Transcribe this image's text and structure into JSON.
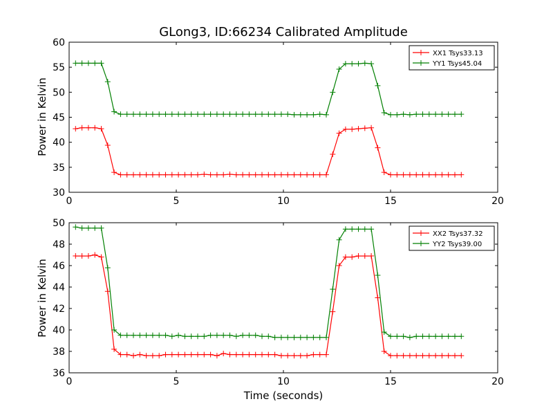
{
  "figure": {
    "title": "GLong3, ID:66234 Calibrated Amplitude",
    "xlabel": "Time (seconds)"
  },
  "colors": {
    "xx": "#ff0000",
    "yy": "#007f00"
  },
  "chart_data": [
    {
      "type": "line",
      "title": "GLong3, ID:66234 Calibrated Amplitude",
      "xlabel": "",
      "ylabel": "Power in Kelvin",
      "xlim": [
        0,
        20
      ],
      "ylim": [
        30,
        60
      ],
      "xticks": [
        0,
        5,
        10,
        15,
        20
      ],
      "yticks": [
        30,
        35,
        40,
        45,
        50,
        55,
        60
      ],
      "legend": "top-right",
      "x": [
        0.3,
        0.6,
        0.9,
        1.2,
        1.5,
        1.8,
        2.1,
        2.4,
        2.7,
        3.0,
        3.3,
        3.6,
        3.9,
        4.2,
        4.5,
        4.8,
        5.1,
        5.4,
        5.7,
        6.0,
        6.3,
        6.6,
        6.9,
        7.2,
        7.5,
        7.8,
        8.1,
        8.4,
        8.7,
        9.0,
        9.3,
        9.6,
        9.9,
        10.2,
        10.5,
        10.8,
        11.1,
        11.4,
        11.7,
        12.0,
        12.3,
        12.6,
        12.9,
        13.2,
        13.5,
        13.8,
        14.1,
        14.4,
        14.7,
        15.0,
        15.3,
        15.6,
        15.9,
        16.2,
        16.5,
        16.8,
        17.1,
        17.4,
        17.7,
        18.0,
        18.3
      ],
      "series": [
        {
          "name": "XX1 Tsys33.13",
          "color": "#ff0000",
          "values": [
            42.7,
            42.9,
            42.9,
            42.9,
            42.7,
            39.4,
            34.0,
            33.5,
            33.5,
            33.5,
            33.5,
            33.5,
            33.5,
            33.5,
            33.5,
            33.5,
            33.5,
            33.5,
            33.5,
            33.5,
            33.6,
            33.5,
            33.5,
            33.5,
            33.6,
            33.5,
            33.5,
            33.5,
            33.5,
            33.5,
            33.5,
            33.5,
            33.5,
            33.5,
            33.5,
            33.5,
            33.5,
            33.5,
            33.5,
            33.5,
            37.6,
            41.8,
            42.6,
            42.6,
            42.7,
            42.8,
            42.9,
            38.9,
            34.0,
            33.5,
            33.5,
            33.5,
            33.5,
            33.5,
            33.5,
            33.5,
            33.5,
            33.5,
            33.5,
            33.5,
            33.5
          ]
        },
        {
          "name": "YY1 Tsys45.04",
          "color": "#007f00",
          "values": [
            55.8,
            55.8,
            55.8,
            55.8,
            55.8,
            52.1,
            46.1,
            45.6,
            45.6,
            45.6,
            45.6,
            45.6,
            45.6,
            45.6,
            45.6,
            45.6,
            45.6,
            45.6,
            45.6,
            45.6,
            45.6,
            45.6,
            45.6,
            45.6,
            45.6,
            45.6,
            45.6,
            45.6,
            45.6,
            45.6,
            45.6,
            45.6,
            45.6,
            45.6,
            45.5,
            45.5,
            45.5,
            45.5,
            45.6,
            45.5,
            50.0,
            54.6,
            55.7,
            55.7,
            55.7,
            55.8,
            55.7,
            51.3,
            45.9,
            45.5,
            45.5,
            45.6,
            45.5,
            45.6,
            45.6,
            45.6,
            45.6,
            45.6,
            45.6,
            45.6,
            45.6
          ]
        }
      ]
    },
    {
      "type": "line",
      "title": "",
      "xlabel": "Time (seconds)",
      "ylabel": "Power in Kelvin",
      "xlim": [
        0,
        20
      ],
      "ylim": [
        36,
        50
      ],
      "xticks": [
        0,
        5,
        10,
        15,
        20
      ],
      "yticks": [
        36,
        38,
        40,
        42,
        44,
        46,
        48,
        50
      ],
      "legend": "top-right",
      "x": [
        0.3,
        0.6,
        0.9,
        1.2,
        1.5,
        1.8,
        2.1,
        2.4,
        2.7,
        3.0,
        3.3,
        3.6,
        3.9,
        4.2,
        4.5,
        4.8,
        5.1,
        5.4,
        5.7,
        6.0,
        6.3,
        6.6,
        6.9,
        7.2,
        7.5,
        7.8,
        8.1,
        8.4,
        8.7,
        9.0,
        9.3,
        9.6,
        9.9,
        10.2,
        10.5,
        10.8,
        11.1,
        11.4,
        11.7,
        12.0,
        12.3,
        12.6,
        12.9,
        13.2,
        13.5,
        13.8,
        14.1,
        14.4,
        14.7,
        15.0,
        15.3,
        15.6,
        15.9,
        16.2,
        16.5,
        16.8,
        17.1,
        17.4,
        17.7,
        18.0,
        18.3
      ],
      "series": [
        {
          "name": "XX2 Tsys37.32",
          "color": "#ff0000",
          "values": [
            46.9,
            46.9,
            46.9,
            47.0,
            46.8,
            43.6,
            38.2,
            37.7,
            37.7,
            37.6,
            37.7,
            37.6,
            37.6,
            37.6,
            37.7,
            37.7,
            37.7,
            37.7,
            37.7,
            37.7,
            37.7,
            37.7,
            37.6,
            37.8,
            37.7,
            37.7,
            37.7,
            37.7,
            37.7,
            37.7,
            37.7,
            37.7,
            37.6,
            37.6,
            37.6,
            37.6,
            37.6,
            37.7,
            37.7,
            37.7,
            41.7,
            46.0,
            46.8,
            46.8,
            46.9,
            46.9,
            46.9,
            43.0,
            38.0,
            37.6,
            37.6,
            37.6,
            37.6,
            37.6,
            37.6,
            37.6,
            37.6,
            37.6,
            37.6,
            37.6,
            37.6
          ]
        },
        {
          "name": "YY2 Tsys39.00",
          "color": "#007f00",
          "values": [
            49.6,
            49.5,
            49.5,
            49.5,
            49.5,
            45.8,
            40.0,
            39.5,
            39.5,
            39.5,
            39.5,
            39.5,
            39.5,
            39.5,
            39.5,
            39.4,
            39.5,
            39.4,
            39.4,
            39.4,
            39.4,
            39.5,
            39.5,
            39.5,
            39.5,
            39.4,
            39.5,
            39.5,
            39.5,
            39.4,
            39.4,
            39.3,
            39.3,
            39.3,
            39.3,
            39.3,
            39.3,
            39.3,
            39.3,
            39.3,
            43.8,
            48.4,
            49.4,
            49.4,
            49.4,
            49.4,
            49.4,
            45.1,
            39.8,
            39.4,
            39.4,
            39.4,
            39.3,
            39.4,
            39.4,
            39.4,
            39.4,
            39.4,
            39.4,
            39.4,
            39.4
          ]
        }
      ]
    }
  ]
}
